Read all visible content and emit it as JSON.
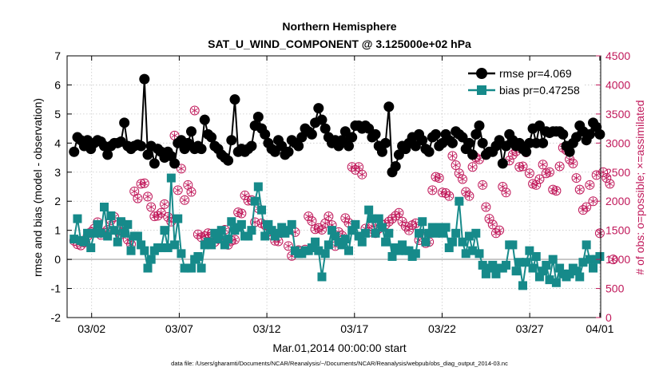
{
  "chart_data": {
    "type": "line",
    "title": "Northern Hemisphere",
    "subtitle": "SAT_U_WIND_COMPONENT @ 3.125000e+02 hPa",
    "xlabel": "Mar.01,2014 00:00:00 start",
    "ylabel": "rmse and bias (model - observation)",
    "ylabel_right": "# of obs: o=possible; ×=assimilated",
    "footer": "data file: /Users/gharamti/Documents/NCAR/Reanalysis/~/Documents/NCAR/Reanalysis/webpub/obs_diag_output_2014-03.nc",
    "xlim": [
      0.6,
      31.05
    ],
    "ylim": [
      -2,
      7
    ],
    "ylim_right": [
      0,
      4500
    ],
    "xticks": [
      {
        "v": 2,
        "l": "03/02"
      },
      {
        "v": 7,
        "l": "03/07"
      },
      {
        "v": 12,
        "l": "03/12"
      },
      {
        "v": 17,
        "l": "03/17"
      },
      {
        "v": 22,
        "l": "03/22"
      },
      {
        "v": 27,
        "l": "03/27"
      },
      {
        "v": 31,
        "l": "04/01"
      }
    ],
    "yticks": [
      -2,
      -1,
      0,
      1,
      2,
      3,
      4,
      5,
      6,
      7
    ],
    "yticks_right": [
      0,
      500,
      1000,
      1500,
      2000,
      2500,
      3000,
      3500,
      4000,
      4500
    ],
    "grid": true,
    "legend_position": "top-right",
    "colors": {
      "rmse": "#000000",
      "bias": "#168a8a",
      "obs": "#c0185a",
      "zero": "#bbbbbb"
    },
    "series": [
      {
        "name": "rmse pr=4.069",
        "key": "rmse",
        "values": [
          3.7,
          4.2,
          4.1,
          3.9,
          4.1,
          3.8,
          4.0,
          4.1,
          4.05,
          3.9,
          3.6,
          3.9,
          4.0,
          4.0,
          4.05,
          4.7,
          3.9,
          3.8,
          3.9,
          3.95,
          3.9,
          6.2,
          3.6,
          3.9,
          3.3,
          3.8,
          3.7,
          3.5,
          3.7,
          3.55,
          3.3,
          4.0,
          4.1,
          3.8,
          4.0,
          4.4,
          3.8,
          3.9,
          3.8,
          4.8,
          4.3,
          4.2,
          3.9,
          3.8,
          3.6,
          3.5,
          3.4,
          4.1,
          5.5,
          3.7,
          3.8,
          3.7,
          3.8,
          3.9,
          4.6,
          4.9,
          4.5,
          4.3,
          4.0,
          3.8,
          3.7,
          4.1,
          3.9,
          3.6,
          3.7,
          4.1,
          4.0,
          3.9,
          4.2,
          4.5,
          4.4,
          4.3,
          4.7,
          5.2,
          4.8,
          4.5,
          4.2,
          4.0,
          4.1,
          3.9,
          4.1,
          4.4,
          3.9,
          4.2,
          4.6,
          4.6,
          4.5,
          4.6,
          4.5,
          4.2,
          4.3,
          3.9,
          3.7,
          4.0,
          5.25,
          3.0,
          3.2,
          3.6,
          3.9,
          3.8,
          4.0,
          4.2,
          3.9,
          4.3,
          4.1,
          3.8,
          3.7,
          4.2,
          4.3,
          3.9,
          4.0,
          4.3,
          4.1,
          4.0,
          4.4,
          4.3,
          4.2,
          3.8,
          4.0,
          3.6,
          4.3,
          4.6,
          4.0,
          3.6,
          3.7,
          3.7,
          3.9,
          4.1,
          3.3,
          3.9,
          4.3,
          4.1,
          3.9,
          4.0,
          3.8,
          3.7,
          4.0,
          4.5,
          4.0,
          4.6,
          4.0,
          4.4,
          4.35,
          4.4,
          4.4,
          4.4,
          4.3,
          3.9,
          3.7,
          4.0,
          4.2,
          4.6,
          4.4,
          4.1,
          4.3,
          4.7,
          4.55,
          4.3
        ]
      },
      {
        "name": "bias pr=0.47258",
        "key": "bias",
        "values": [
          0.7,
          1.4,
          0.65,
          0.6,
          0.9,
          0.4,
          0.9,
          1.2,
          0.9,
          1.8,
          0.8,
          1.5,
          1.0,
          0.6,
          1.3,
          0.9,
          1.2,
          0.3,
          0.8,
          0.8,
          0.5,
          0.3,
          -0.3,
          0.0,
          0.3,
          0.4,
          0.4,
          1.0,
          0.4,
          2.8,
          0.5,
          1.4,
          0.2,
          -0.3,
          -0.3,
          -0.3,
          0.0,
          0.1,
          -0.3,
          0.5,
          0.6,
          0.5,
          0.9,
          0.7,
          1.0,
          0.5,
          0.7,
          1.3,
          1.0,
          1.1,
          1.2,
          0.8,
          0.8,
          1.0,
          2.0,
          2.5,
          1.7,
          0.8,
          1.2,
          1.0,
          0.8,
          0.9,
          1.1,
          0.9,
          1.0,
          1.2,
          0.3,
          0.2,
          0.2,
          0.3,
          0.3,
          0.4,
          0.6,
          0.3,
          -0.6,
          0.2,
          0.5,
          1.0,
          0.8,
          0.6,
          0.5,
          0.7,
          0.3,
          1.0,
          1.2,
          0.8,
          0.6,
          0.9,
          1.7,
          1.4,
          0.9,
          1.4,
          1.1,
          0.6,
          0.9,
          0.1,
          0.4,
          0.3,
          0.5,
          0.3,
          0.3,
          0.1,
          0.2,
          0.9,
          1.3,
          0.6,
          0.9,
          1.1,
          0.9,
          1.1,
          0.9,
          1.1,
          0.4,
          0.6,
          0.9,
          2.0,
          0.6,
          0.2,
          0.8,
          0.3,
          0.9,
          0.2,
          -0.2,
          -0.5,
          -0.3,
          -0.2,
          -0.5,
          -0.3,
          -0.3,
          -0.2,
          0.5,
          0.5,
          -0.4,
          -0.1,
          -0.9,
          -0.1,
          0.3,
          -0.3,
          0.1,
          -0.6,
          -0.4,
          -0.2,
          -0.7,
          0.0,
          -0.8,
          -0.3,
          -0.5,
          -0.6,
          -0.5,
          -0.3,
          -0.4,
          -0.6,
          -0.1,
          0.5,
          0.0,
          -0.3,
          0.0,
          0.1
        ]
      },
      {
        "name": "possible obs",
        "key": "obs",
        "values": [
          1320,
          1260,
          1240,
          1290,
          1400,
          1470,
          1530,
          1640,
          1420,
          1460,
          1510,
          1670,
          1730,
          1490,
          1430,
          1600,
          1340,
          1260,
          2170,
          2050,
          2300,
          2310,
          2080,
          1900,
          1740,
          1750,
          1800,
          1950,
          1730,
          1650,
          3130,
          2190,
          2560,
          2020,
          2280,
          2160,
          3560,
          1430,
          1380,
          1400,
          1450,
          1440,
          1300,
          1350,
          1420,
          1510,
          1250,
          1320,
          1340,
          1810,
          1790,
          2100,
          2010,
          2020,
          1640,
          1880,
          1620,
          1590,
          1480,
          1420,
          1320,
          1310,
          1460,
          1490,
          1230,
          1060,
          1470,
          1160,
          1140,
          1170,
          1740,
          1660,
          1520,
          1540,
          1510,
          1620,
          1740,
          1590,
          1230,
          1470,
          1410,
          1710,
          1630,
          2590,
          2540,
          2590,
          2460,
          1530,
          1470,
          1570,
          1450,
          1530,
          1600,
          1600,
          1650,
          1700,
          1750,
          1800,
          1650,
          1570,
          1500,
          1590,
          1620,
          1330,
          1440,
          1280,
          1300,
          2190,
          2420,
          2400,
          2150,
          2140,
          2090,
          2780,
          2620,
          2480,
          2380,
          2160,
          2090,
          2590,
          2750,
          2720,
          2280,
          1900,
          1700,
          1600,
          1450,
          1500,
          2250,
          2150,
          2700,
          2800,
          2860,
          2590,
          2600,
          2840,
          2480,
          2300,
          2280,
          2380,
          2630,
          2480,
          2500,
          2200,
          2180,
          2600,
          2920,
          2880,
          2720,
          2650,
          2400,
          2200,
          1850,
          1900,
          2280,
          2000,
          2450,
          1450,
          2500,
          2400,
          2300,
          1000
        ]
      }
    ]
  }
}
